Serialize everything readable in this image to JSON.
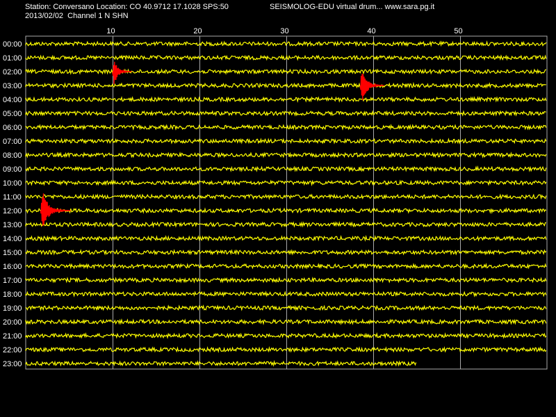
{
  "header": {
    "station_line": "Station: Conversano Location: CO 40.9712 17.1028 SPS:50",
    "title_line": "SEISMOLOG-EDU virtual drum... www.sara.pg.it",
    "date_line": "2013/02/02  Channel 1 N SHN"
  },
  "chart_data": {
    "type": "line",
    "title": "SEISMOLOG-EDU virtual drum... www.sara.pg.it",
    "xlabel": "",
    "ylabel": "",
    "xlim": [
      0,
      60
    ],
    "x_ticks": [
      10,
      20,
      30,
      40,
      50
    ],
    "rows": [
      "00:00",
      "01:00",
      "02:00",
      "03:00",
      "04:00",
      "05:00",
      "06:00",
      "07:00",
      "08:00",
      "09:00",
      "10:00",
      "11:00",
      "12:00",
      "13:00",
      "14:00",
      "15:00",
      "16:00",
      "17:00",
      "18:00",
      "19:00",
      "20:00",
      "21:00",
      "22:00",
      "23:00"
    ],
    "last_row_end_minute": 45,
    "grid": true,
    "trace_color": "#ffff00",
    "event_color": "#ff0000",
    "events": [
      {
        "row": "02:00",
        "start_minute": 10,
        "end_minute": 12.2
      },
      {
        "row": "03:00",
        "start_minute": 38.5,
        "end_minute": 41.3
      },
      {
        "row": "12:00",
        "start_minute": 1.7,
        "end_minute": 5.2
      }
    ]
  }
}
